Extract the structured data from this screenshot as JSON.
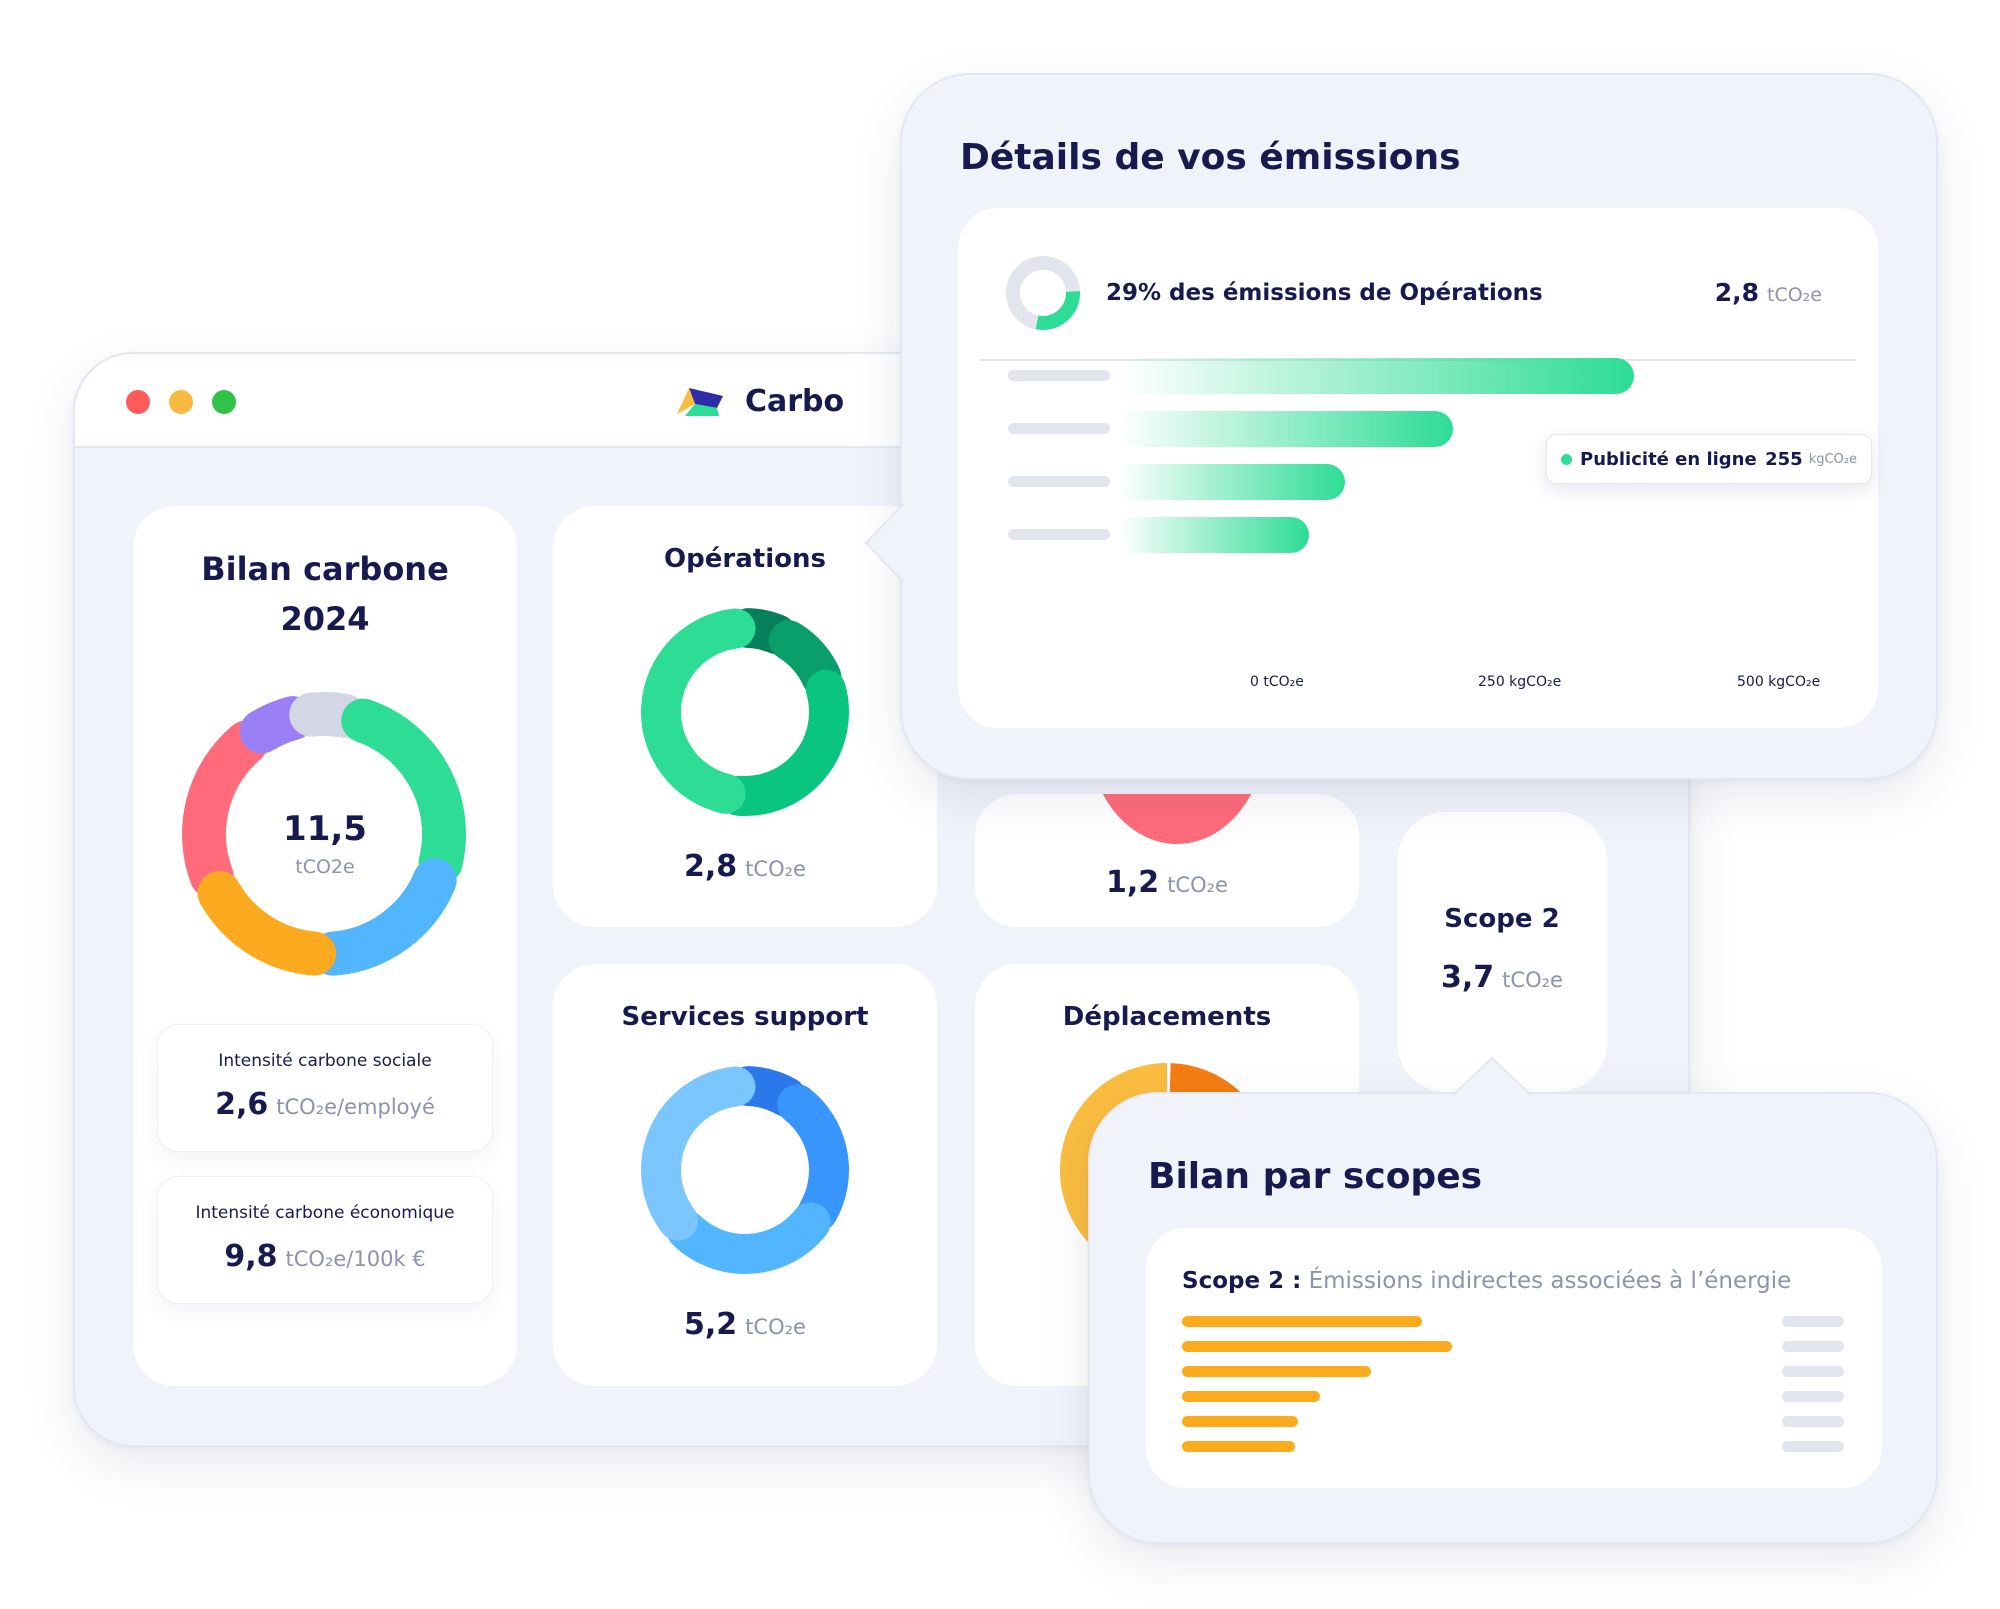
{
  "app": {
    "name": "Carbo"
  },
  "summary": {
    "title_line1": "Bilan carbone",
    "title_line2": "2024",
    "total_value": "11,5",
    "total_unit": "tCO2e",
    "donut": [
      {
        "label": "pink",
        "color": "#ff6b7a",
        "share": 0.22
      },
      {
        "label": "purple",
        "color": "#9b7ff7",
        "share": 0.07
      },
      {
        "label": "grey",
        "color": "#d3d6e4",
        "share": 0.07
      },
      {
        "label": "green",
        "color": "#2ddc95",
        "share": 0.26
      },
      {
        "label": "blue",
        "color": "#52b6ff",
        "share": 0.2
      },
      {
        "label": "orange",
        "color": "#fbaa1f",
        "share": 0.18
      }
    ],
    "social": {
      "label": "Intensité carbone sociale",
      "value": "2,6",
      "unit": "tCO₂e/employé"
    },
    "economic": {
      "label": "Intensité carbone économique",
      "value": "9,8",
      "unit": "tCO₂e/100k €"
    }
  },
  "categories": {
    "operations": {
      "title": "Opérations",
      "value": "2,8",
      "unit": "tCO₂e",
      "donut": [
        {
          "label": "dark-green",
          "color": "#05805a",
          "share": 0.08
        },
        {
          "label": "mid-green",
          "color": "#0a9e6b",
          "share": 0.12
        },
        {
          "label": "green",
          "color": "#0ac57f",
          "share": 0.33
        },
        {
          "label": "light-green",
          "color": "#2ddc95",
          "share": 0.47
        }
      ]
    },
    "hidden_card": {
      "value": "1,2",
      "unit": "tCO₂e",
      "color": "#ff6b7a"
    },
    "services": {
      "title": "Services support",
      "value": "5,2",
      "unit": "tCO₂e",
      "donut": [
        {
          "label": "dark-blue",
          "color": "#2a78ea",
          "share": 0.1
        },
        {
          "label": "blue",
          "color": "#3895fb",
          "share": 0.25
        },
        {
          "label": "mid-blue",
          "color": "#52b6ff",
          "share": 0.29
        },
        {
          "label": "light-blue",
          "color": "#7cc6ff",
          "share": 0.36
        }
      ]
    },
    "deplacements": {
      "title": "Déplacements",
      "colors": [
        "#fbbd40",
        "#f47c12"
      ]
    }
  },
  "scope2_card": {
    "title": "Scope 2",
    "value": "3,7",
    "unit": "tCO₂e"
  },
  "emissions_popup": {
    "title": "Détails de vos émissions",
    "headline": "29% des émissions de Opérations",
    "headline_value": "2,8",
    "headline_unit": "tCO₂e",
    "share": 0.29,
    "tooltip": {
      "label": "Publicité en ligne",
      "value": "255",
      "unit": "kgCO₂e"
    },
    "axis": [
      "0 tCO₂e",
      "250 kgCO₂e",
      "500 kgCO₂e"
    ],
    "bars_fraction": [
      1.0,
      0.65,
      0.44,
      0.37
    ],
    "accent": "#2ddc95"
  },
  "scopes_popup": {
    "title": "Bilan par scopes",
    "scope_label": "Scope 2 :",
    "scope_desc": "Émissions indirectes associées à l’énergie",
    "bars_fraction": [
      0.89,
      1.0,
      0.7,
      0.51,
      0.43,
      0.42
    ],
    "accent": "#fbab1d"
  }
}
